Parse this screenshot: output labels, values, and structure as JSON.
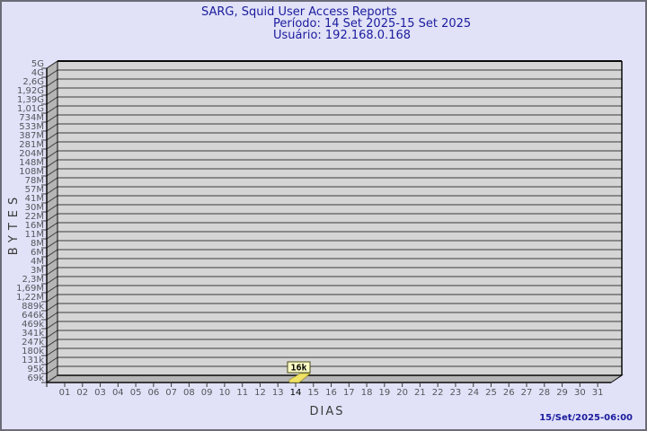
{
  "window": {
    "background": "#e1e2f7",
    "border_color": "#6c6c78"
  },
  "header": {
    "title": "SARG, Squid User Access Reports",
    "period_label": "Período: 14 Set 2025-15 Set 2025",
    "user_label": "Usuário: 192.168.0.168",
    "text_color": "#1b1b9e"
  },
  "footer": {
    "timestamp": "15/Set/2025-06:00",
    "text_color": "#1b1b9e"
  },
  "chart_data": {
    "type": "bar",
    "title": "SARG, Squid User Access Reports",
    "xlabel": "DIAS",
    "ylabel": "BYTES",
    "x_categories": [
      "01",
      "02",
      "03",
      "04",
      "05",
      "06",
      "07",
      "08",
      "09",
      "10",
      "11",
      "12",
      "13",
      "14",
      "15",
      "16",
      "17",
      "18",
      "19",
      "20",
      "21",
      "22",
      "23",
      "24",
      "25",
      "26",
      "27",
      "28",
      "29",
      "30",
      "31"
    ],
    "y_tick_labels": [
      "5G",
      "4G",
      "2,6G",
      "1,92G",
      "1,39G",
      "1,01G",
      "734M",
      "533M",
      "387M",
      "281M",
      "204M",
      "148M",
      "108M",
      "78M",
      "57M",
      "41M",
      "30M",
      "22M",
      "16M",
      "11M",
      "8M",
      "6M",
      "4M",
      "3M",
      "2,3M",
      "1,69M",
      "1,22M",
      "889k",
      "646k",
      "469k",
      "341k",
      "247k",
      "180k",
      "131k",
      "95k",
      "69k"
    ],
    "y_axis_range_note": "ticks from 69k up to 5G, non-linear auto scale",
    "grid": true,
    "legend": "none",
    "bars": [
      {
        "day": "14",
        "value_label": "16k",
        "value_bytes": 16000
      }
    ],
    "highlighted_day": "14",
    "colors": {
      "panel_fill": "#d5d5d5",
      "wall_fill": "#b5b5b5",
      "grid_line": "#3a3a3a",
      "edge_line": "#0a0a0a",
      "tick_text": "#55555c",
      "highlight_tick_text": "#000000",
      "bar_fill": "#f0e266",
      "bar_stroke": "#8a8210",
      "value_box_fill": "#ffffc8",
      "value_box_stroke": "#4a4a16",
      "value_text": "#000000"
    }
  }
}
